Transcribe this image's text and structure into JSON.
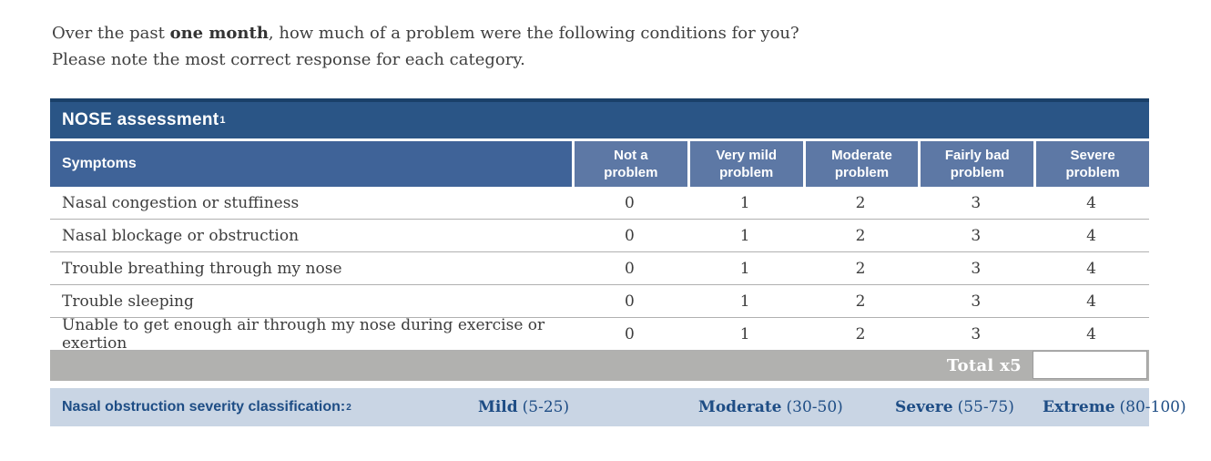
{
  "intro": {
    "line1_prefix": "Over the past ",
    "line1_bold": "one month",
    "line1_suffix": ", how much of a problem were the following conditions for you?",
    "line2": "Please note the most correct response for each category."
  },
  "table": {
    "title": "NOSE assessment",
    "title_superscript": "1",
    "columns": [
      "Symptoms",
      "Not a problem",
      "Very mild problem",
      "Moderate problem",
      "Fairly bad problem",
      "Severe problem"
    ],
    "rows": [
      {
        "symptom": "Nasal congestion or stuffiness",
        "options": [
          "0",
          "1",
          "2",
          "3",
          "4"
        ]
      },
      {
        "symptom": "Nasal blockage or obstruction",
        "options": [
          "0",
          "1",
          "2",
          "3",
          "4"
        ]
      },
      {
        "symptom": "Trouble breathing through my nose",
        "options": [
          "0",
          "1",
          "2",
          "3",
          "4"
        ]
      },
      {
        "symptom": "Trouble sleeping",
        "options": [
          "0",
          "1",
          "2",
          "3",
          "4"
        ]
      },
      {
        "symptom": "Unable to get enough air through my nose during exercise or exertion",
        "options": [
          "0",
          "1",
          "2",
          "3",
          "4"
        ]
      }
    ],
    "total_label": "Total x5",
    "total_value": ""
  },
  "classification": {
    "label": "Nasal obstruction severity classification:",
    "superscript": "2",
    "levels": [
      {
        "name": "Mild",
        "range": "(5-25)"
      },
      {
        "name": "Moderate",
        "range": "(30-50)"
      },
      {
        "name": "Severe",
        "range": "(55-75)"
      },
      {
        "name": "Extreme",
        "range": "(80-100)"
      }
    ]
  },
  "colors": {
    "title_band": "#2a5586",
    "title_band_top_border": "#1a4069",
    "symptoms_header": "#3f6398",
    "option_header": "#5d78a5",
    "header_text": "#ffffff",
    "body_text": "#3c3c3c",
    "row_divider": "#b0b0b0",
    "total_row": "#b1b1af",
    "classification_background": "#c9d5e4",
    "classification_text": "#1e4d85"
  }
}
